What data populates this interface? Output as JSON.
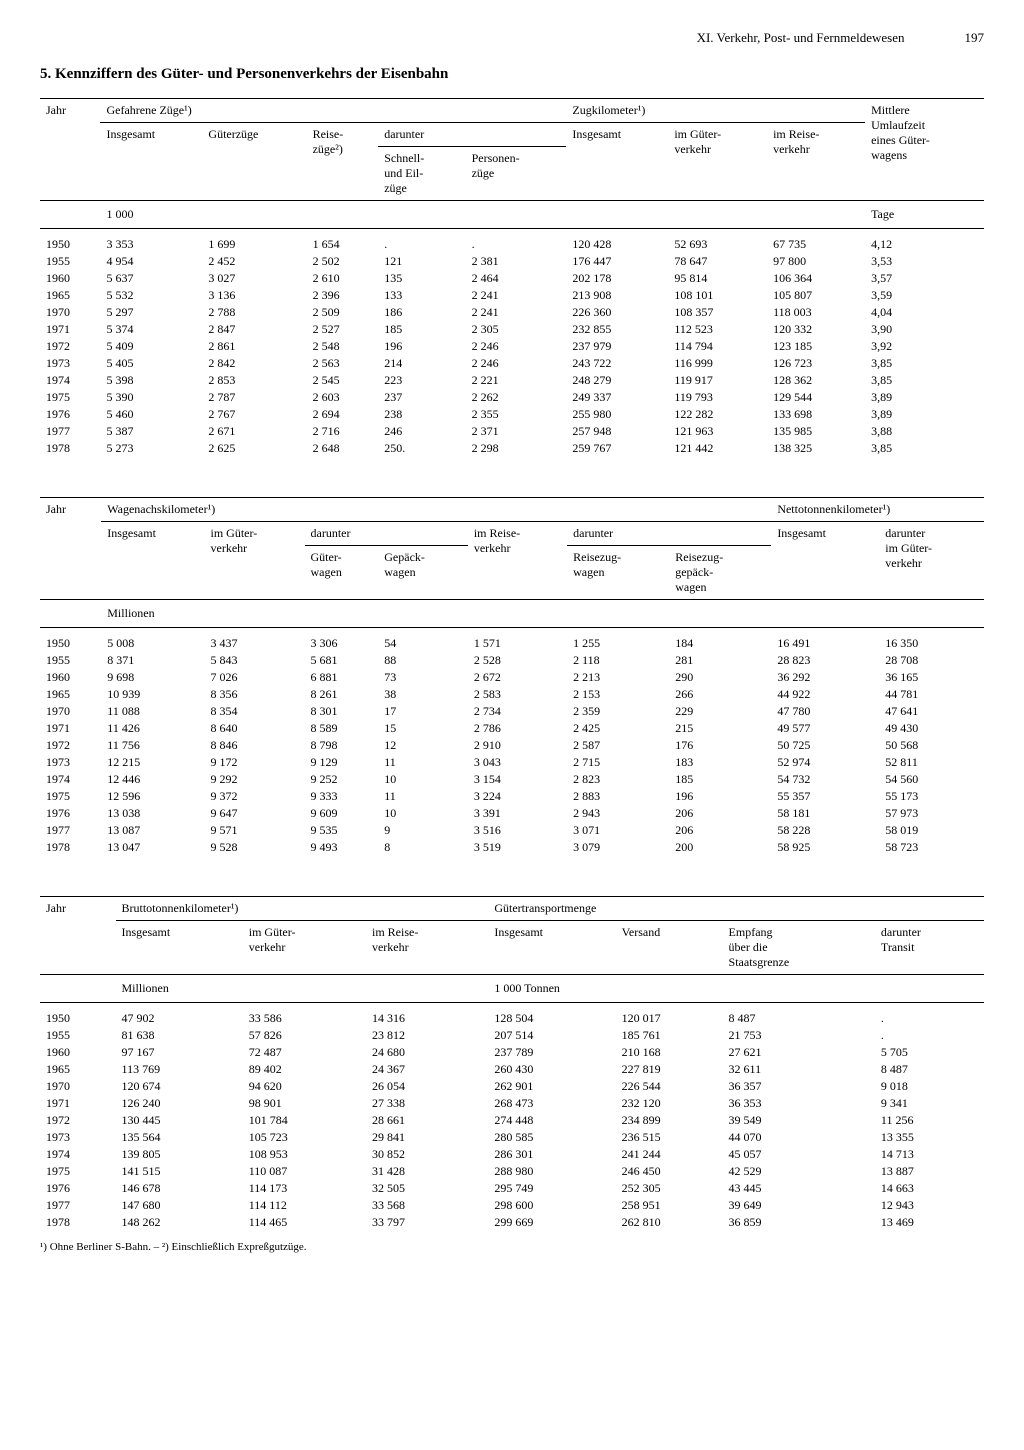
{
  "page": {
    "chapter": "XI. Verkehr, Post- und Fernmeldewesen",
    "number": "197",
    "title": "5. Kennziffern des Güter- und Personenverkehrs der Eisenbahn",
    "footnote": "¹) Ohne Berliner S-Bahn. – ²) Einschließlich Expreßgutzüge."
  },
  "table1": {
    "col_jahr": "Jahr",
    "grp_gefahrene": "Gefahrene Züge¹)",
    "col_insgesamt": "Insgesamt",
    "col_gueterzuege": "Güterzüge",
    "col_reisezuege": "Reise-\nzüge²)",
    "col_darunter": "darunter",
    "col_schnell": "Schnell-\nund Eil-\nzüge",
    "col_personen": "Personen-\nzüge",
    "grp_zugkm": "Zugkilometer¹)",
    "col_zugkm_insg": "Insgesamt",
    "col_zugkm_gueter": "im Güter-\nverkehr",
    "col_zugkm_reise": "im Reise-\nverkehr",
    "col_umlauf": "Mittlere\nUmlaufzeit\neines Güter-\nwagens",
    "unit1": "1 000",
    "unit2": "Tage",
    "rows": [
      [
        "1950",
        "3 353",
        "1 699",
        "1 654",
        ".",
        ".",
        "120 428",
        "52 693",
        "67 735",
        "4,12"
      ],
      [
        "1955",
        "4 954",
        "2 452",
        "2 502",
        "121",
        "2 381",
        "176 447",
        "78 647",
        "97 800",
        "3,53"
      ],
      [
        "1960",
        "5 637",
        "3 027",
        "2 610",
        "135",
        "2 464",
        "202 178",
        "95 814",
        "106 364",
        "3,57"
      ],
      [
        "1965",
        "5 532",
        "3 136",
        "2 396",
        "133",
        "2 241",
        "213 908",
        "108 101",
        "105 807",
        "3,59"
      ],
      [
        "1970",
        "5 297",
        "2 788",
        "2 509",
        "186",
        "2 241",
        "226 360",
        "108 357",
        "118 003",
        "4,04"
      ],
      [
        "1971",
        "5 374",
        "2 847",
        "2 527",
        "185",
        "2 305",
        "232 855",
        "112 523",
        "120 332",
        "3,90"
      ],
      [
        "1972",
        "5 409",
        "2 861",
        "2 548",
        "196",
        "2 246",
        "237 979",
        "114 794",
        "123 185",
        "3,92"
      ],
      [
        "1973",
        "5 405",
        "2 842",
        "2 563",
        "214",
        "2 246",
        "243 722",
        "116 999",
        "126 723",
        "3,85"
      ],
      [
        "1974",
        "5 398",
        "2 853",
        "2 545",
        "223",
        "2 221",
        "248 279",
        "119 917",
        "128 362",
        "3,85"
      ],
      [
        "1975",
        "5 390",
        "2 787",
        "2 603",
        "237",
        "2 262",
        "249 337",
        "119 793",
        "129 544",
        "3,89"
      ],
      [
        "1976",
        "5 460",
        "2 767",
        "2 694",
        "238",
        "2 355",
        "255 980",
        "122 282",
        "133 698",
        "3,89"
      ],
      [
        "1977",
        "5 387",
        "2 671",
        "2 716",
        "246",
        "2 371",
        "257 948",
        "121 963",
        "135 985",
        "3,88"
      ],
      [
        "1978",
        "5 273",
        "2 625",
        "2 648",
        "250.",
        "2 298",
        "259 767",
        "121 442",
        "138 325",
        "3,85"
      ]
    ]
  },
  "table2": {
    "col_jahr": "Jahr",
    "grp_wagen": "Wagenachskilometer¹)",
    "col_insgesamt": "Insgesamt",
    "col_gueter": "im Güter-\nverkehr",
    "col_darunter": "darunter",
    "col_gueterwagen": "Güter-\nwagen",
    "col_gepaeck": "Gepäck-\nwagen",
    "col_reise": "im Reise-\nverkehr",
    "col_darunter2": "darunter",
    "col_reisezugwagen": "Reisezug-\nwagen",
    "col_reisegepaeck": "Reisezug-\ngepäck-\nwagen",
    "grp_netto": "Nettotonnenkilometer¹)",
    "col_netto_insg": "Insgesamt",
    "col_netto_gueter": "darunter\nim Güter-\nverkehr",
    "unit": "Millionen",
    "rows": [
      [
        "1950",
        "5 008",
        "3 437",
        "3 306",
        "54",
        "1 571",
        "1 255",
        "184",
        "16 491",
        "16 350"
      ],
      [
        "1955",
        "8 371",
        "5 843",
        "5 681",
        "88",
        "2 528",
        "2 118",
        "281",
        "28 823",
        "28 708"
      ],
      [
        "1960",
        "9 698",
        "7 026",
        "6 881",
        "73",
        "2 672",
        "2 213",
        "290",
        "36 292",
        "36 165"
      ],
      [
        "1965",
        "10 939",
        "8 356",
        "8 261",
        "38",
        "2 583",
        "2 153",
        "266",
        "44 922",
        "44 781"
      ],
      [
        "1970",
        "11 088",
        "8 354",
        "8 301",
        "17",
        "2 734",
        "2 359",
        "229",
        "47 780",
        "47 641"
      ],
      [
        "1971",
        "11 426",
        "8 640",
        "8 589",
        "15",
        "2 786",
        "2 425",
        "215",
        "49 577",
        "49 430"
      ],
      [
        "1972",
        "11 756",
        "8 846",
        "8 798",
        "12",
        "2 910",
        "2 587",
        "176",
        "50 725",
        "50 568"
      ],
      [
        "1973",
        "12 215",
        "9 172",
        "9 129",
        "11",
        "3 043",
        "2 715",
        "183",
        "52 974",
        "52 811"
      ],
      [
        "1974",
        "12 446",
        "9 292",
        "9 252",
        "10",
        "3 154",
        "2 823",
        "185",
        "54 732",
        "54 560"
      ],
      [
        "1975",
        "12 596",
        "9 372",
        "9 333",
        "11",
        "3 224",
        "2 883",
        "196",
        "55 357",
        "55 173"
      ],
      [
        "1976",
        "13 038",
        "9 647",
        "9 609",
        "10",
        "3 391",
        "2 943",
        "206",
        "58 181",
        "57 973"
      ],
      [
        "1977",
        "13 087",
        "9 571",
        "9 535",
        "9",
        "3 516",
        "3 071",
        "206",
        "58 228",
        "58 019"
      ],
      [
        "1978",
        "13 047",
        "9 528",
        "9 493",
        "8",
        "3 519",
        "3 079",
        "200",
        "58 925",
        "58 723"
      ]
    ]
  },
  "table3": {
    "col_jahr": "Jahr",
    "grp_brutto": "Bruttotonnenkilometer¹)",
    "col_insgesamt": "Insgesamt",
    "col_gueter": "im Güter-\nverkehr",
    "col_reise": "im Reise-\nverkehr",
    "grp_transport": "Gütertransportmenge",
    "col_t_insg": "Insgesamt",
    "col_versand": "Versand",
    "col_empfang": "Empfang\nüber die\nStaatsgrenze",
    "col_transit": "darunter\nTransit",
    "unit1": "Millionen",
    "unit2": "1 000 Tonnen",
    "rows": [
      [
        "1950",
        "47 902",
        "33 586",
        "14 316",
        "128 504",
        "120 017",
        "8 487",
        "."
      ],
      [
        "1955",
        "81 638",
        "57 826",
        "23 812",
        "207 514",
        "185 761",
        "21 753",
        "."
      ],
      [
        "1960",
        "97 167",
        "72 487",
        "24 680",
        "237 789",
        "210 168",
        "27 621",
        "5 705"
      ],
      [
        "1965",
        "113 769",
        "89 402",
        "24 367",
        "260 430",
        "227 819",
        "32 611",
        "8 487"
      ],
      [
        "1970",
        "120 674",
        "94 620",
        "26 054",
        "262 901",
        "226 544",
        "36 357",
        "9 018"
      ],
      [
        "1971",
        "126 240",
        "98 901",
        "27 338",
        "268 473",
        "232 120",
        "36 353",
        "9 341"
      ],
      [
        "1972",
        "130 445",
        "101 784",
        "28 661",
        "274 448",
        "234 899",
        "39 549",
        "11 256"
      ],
      [
        "1973",
        "135 564",
        "105 723",
        "29 841",
        "280 585",
        "236 515",
        "44 070",
        "13 355"
      ],
      [
        "1974",
        "139 805",
        "108 953",
        "30 852",
        "286 301",
        "241 244",
        "45 057",
        "14 713"
      ],
      [
        "1975",
        "141 515",
        "110 087",
        "31 428",
        "288 980",
        "246 450",
        "42 529",
        "13 887"
      ],
      [
        "1976",
        "146 678",
        "114 173",
        "32 505",
        "295 749",
        "252 305",
        "43 445",
        "14 663"
      ],
      [
        "1977",
        "147 680",
        "114 112",
        "33 568",
        "298 600",
        "258 951",
        "39 649",
        "12 943"
      ],
      [
        "1978",
        "148 262",
        "114 465",
        "33 797",
        "299 669",
        "262 810",
        "36 859",
        "13 469"
      ]
    ]
  }
}
